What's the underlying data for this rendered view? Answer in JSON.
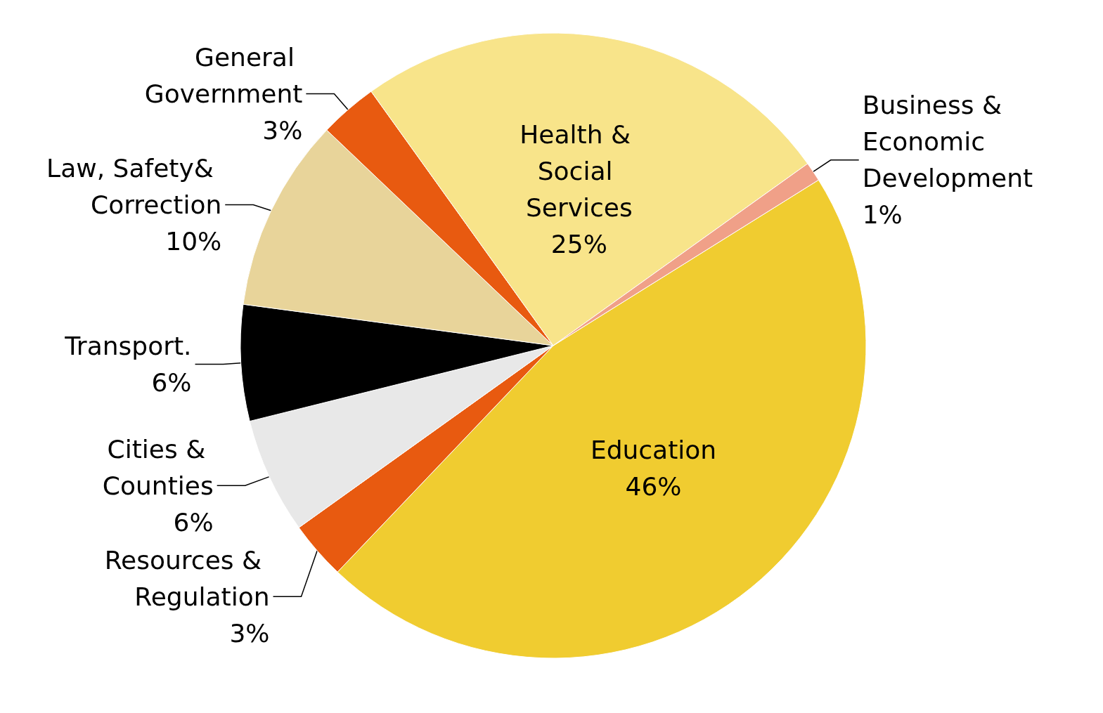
{
  "chart_data": {
    "type": "pie",
    "categories": [
      "Education",
      "Resources & Regulation",
      "Cities & Counties",
      "Transport.",
      "Law, Safety& Correction",
      "General Government",
      "Health & Social Services",
      "Business & Economic Development"
    ],
    "values": [
      46,
      3,
      6,
      6,
      10,
      3,
      25,
      1
    ],
    "value_labels": [
      "46%",
      "3%",
      "6%",
      "6%",
      "10%",
      "3%",
      "25%",
      "1%"
    ],
    "colors": [
      "#f0cc30",
      "#e85a10",
      "#e8e8e8",
      "#000000",
      "#e8d49a",
      "#e85a10",
      "#f8e48a",
      "#f0a088"
    ],
    "legend": false
  }
}
